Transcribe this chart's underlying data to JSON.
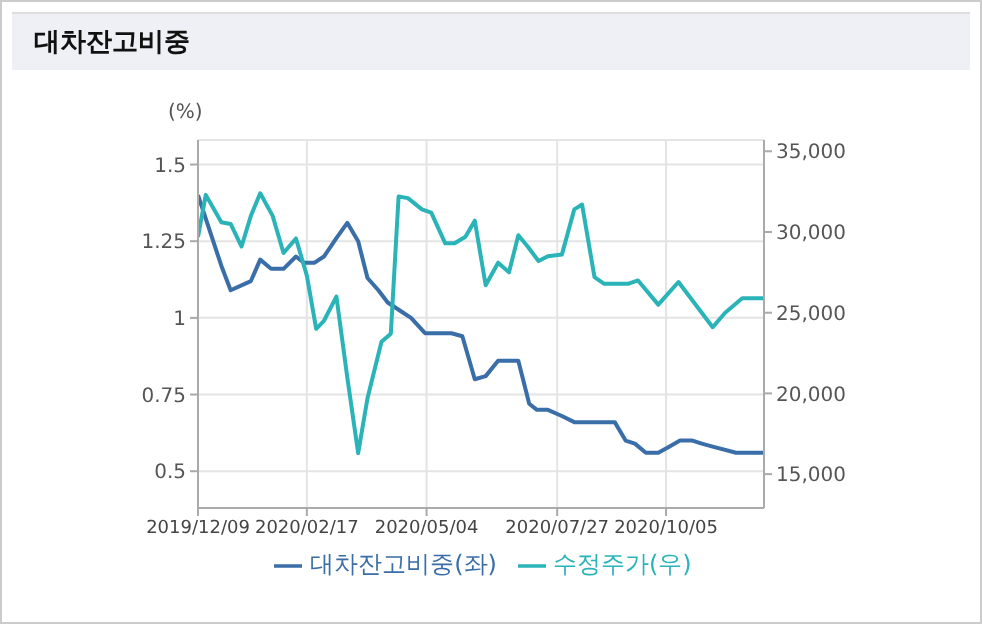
{
  "chart_data": {
    "type": "line",
    "title": "대차잔고비중",
    "ylabel": "(%)",
    "legend": "bottom",
    "grid": true,
    "marker": "none",
    "line_style": "solid",
    "xlim": [
      "2019-12-09",
      "2020-12-07"
    ],
    "xticks": [
      {
        "value": "2019-12-09",
        "label": "2019/12/09"
      },
      {
        "value": "2020-02-17",
        "label": "2020/02/17"
      },
      {
        "value": "2020-05-04",
        "label": "2020/05/04"
      },
      {
        "value": "2020-07-27",
        "label": "2020/07/27"
      },
      {
        "value": "2020-10-05",
        "label": "2020/10/05"
      }
    ],
    "ylim": [
      0.38,
      1.58
    ],
    "yticks": [
      0.5,
      0.75,
      1,
      1.25,
      1.5
    ],
    "y2lim": [
      12900,
      35700
    ],
    "y2ticks": [
      {
        "value": 15000,
        "label": "15,000"
      },
      {
        "value": 20000,
        "label": "20,000"
      },
      {
        "value": 25000,
        "label": "25,000"
      },
      {
        "value": 30000,
        "label": "30,000"
      },
      {
        "value": 35000,
        "label": "35,000"
      }
    ],
    "series": [
      {
        "name": "대차잔고비중(좌)",
        "color": "#3a6ea8",
        "x": [
          "2019-12-09",
          "2019-12-24",
          "2019-12-30",
          "2020-01-12",
          "2020-01-18",
          "2020-01-25",
          "2020-02-02",
          "2020-02-10",
          "2020-02-15",
          "2020-02-22",
          "2020-02-28",
          "2020-03-07",
          "2020-03-14",
          "2020-03-21",
          "2020-03-27",
          "2020-04-03",
          "2020-04-09",
          "2020-04-18",
          "2020-04-24",
          "2020-05-03",
          "2020-05-20",
          "2020-05-27",
          "2020-06-04",
          "2020-06-11",
          "2020-06-19",
          "2020-07-02",
          "2020-07-09",
          "2020-07-14",
          "2020-07-21",
          "2020-07-30",
          "2020-08-07",
          "2020-09-02",
          "2020-09-09",
          "2020-09-15",
          "2020-09-22",
          "2020-09-30",
          "2020-10-07",
          "2020-10-14",
          "2020-10-22",
          "2020-10-28",
          "2020-11-04",
          "2020-11-19",
          "2020-12-07"
        ],
        "values": [
          1.4,
          1.17,
          1.09,
          1.12,
          1.19,
          1.16,
          1.16,
          1.2,
          1.18,
          1.18,
          1.2,
          1.26,
          1.31,
          1.25,
          1.13,
          1.09,
          1.05,
          1.02,
          1.0,
          0.95,
          0.95,
          0.94,
          0.8,
          0.81,
          0.86,
          0.86,
          0.72,
          0.7,
          0.7,
          0.68,
          0.66,
          0.66,
          0.6,
          0.59,
          0.56,
          0.56,
          0.58,
          0.6,
          0.6,
          0.59,
          0.58,
          0.56,
          0.56
        ]
      },
      {
        "name": "수정주가(우)",
        "color": "#2ab4b8",
        "axis": "y2",
        "x": [
          "2019-12-09",
          "2019-12-14",
          "2019-12-24",
          "2019-12-30",
          "2020-01-06",
          "2020-01-12",
          "2020-01-18",
          "2020-01-26",
          "2020-02-02",
          "2020-02-10",
          "2020-02-17",
          "2020-02-23",
          "2020-02-28",
          "2020-03-07",
          "2020-03-14",
          "2020-03-21",
          "2020-03-27",
          "2020-04-05",
          "2020-04-11",
          "2020-04-16",
          "2020-04-22",
          "2020-05-01",
          "2020-05-07",
          "2020-05-16",
          "2020-05-22",
          "2020-05-29",
          "2020-06-04",
          "2020-06-11",
          "2020-06-19",
          "2020-06-26",
          "2020-07-02",
          "2020-07-08",
          "2020-07-15",
          "2020-07-21",
          "2020-07-30",
          "2020-08-07",
          "2020-08-12",
          "2020-08-20",
          "2020-08-26",
          "2020-09-11",
          "2020-09-17",
          "2020-09-30",
          "2020-10-13",
          "2020-11-04",
          "2020-11-12",
          "2020-11-23",
          "2020-12-07"
        ],
        "values": [
          29700,
          32300,
          30600,
          30500,
          29100,
          31000,
          32400,
          31000,
          28700,
          29600,
          27300,
          24000,
          24500,
          26000,
          21000,
          16300,
          19700,
          23200,
          23700,
          32200,
          32100,
          31400,
          31200,
          29300,
          29300,
          29700,
          30700,
          26700,
          28100,
          27500,
          29800,
          29100,
          28200,
          28500,
          28600,
          31400,
          31700,
          27200,
          26800,
          26800,
          27000,
          25500,
          26900,
          24100,
          25000,
          25900,
          25900
        ]
      }
    ]
  }
}
